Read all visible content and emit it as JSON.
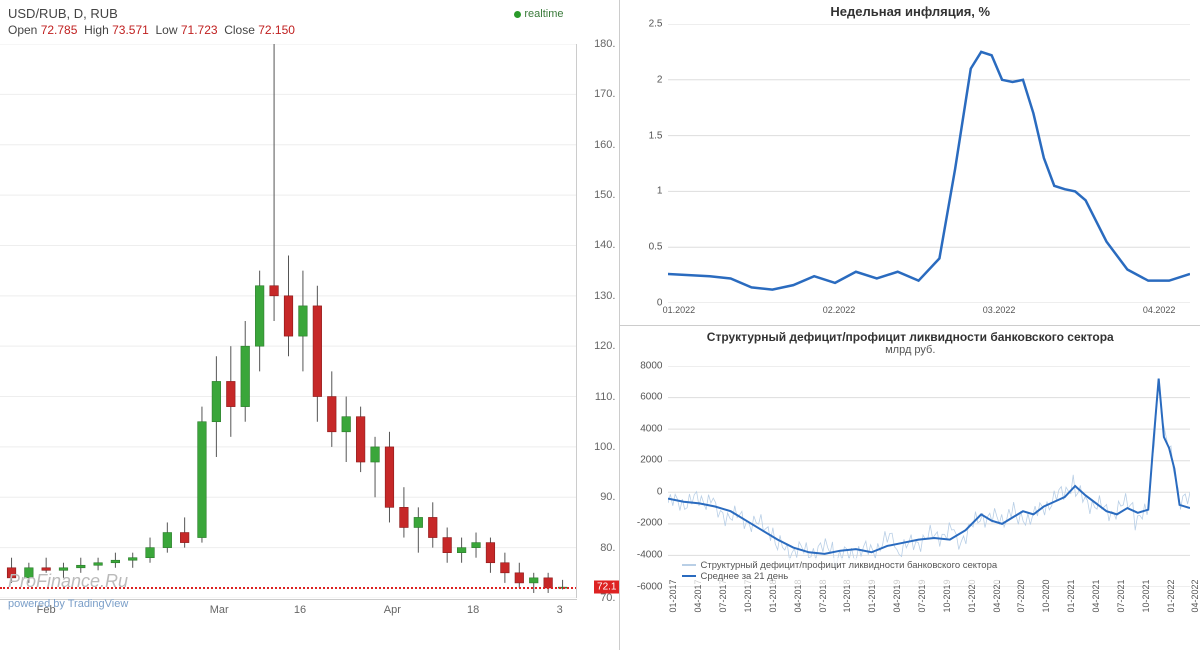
{
  "candlestick": {
    "symbol_line": "USD/RUB, D, RUB",
    "ohlc_labels": {
      "open": "Open",
      "high": "High",
      "low": "Low",
      "close": "Close"
    },
    "ohlc": {
      "open": "72.785",
      "high": "73.571",
      "low": "71.723",
      "close": "72.150"
    },
    "ohlc_value_color": "#c02020",
    "realtime_label": "realtime",
    "watermark": "ProFinance.Ru",
    "powered": "powered by TradingView",
    "price_tag": "72.1",
    "yaxis": {
      "min": 70,
      "max": 180,
      "ticks": [
        70,
        80,
        90,
        100,
        110,
        120,
        130,
        140,
        150,
        160,
        170,
        180
      ]
    },
    "xaxis": {
      "labels": [
        "Feb",
        "Mar",
        "16",
        "Apr",
        "18",
        "3"
      ],
      "positions": [
        0.08,
        0.38,
        0.52,
        0.68,
        0.82,
        0.97
      ]
    },
    "up_color": "#3aa63a",
    "up_border": "#2a7a2a",
    "down_color": "#c62828",
    "down_border": "#8a1a1a",
    "wick_color": "#555",
    "dash_color": "#d22",
    "candles": [
      {
        "x": 0.02,
        "o": 76,
        "h": 78,
        "l": 73,
        "c": 74
      },
      {
        "x": 0.05,
        "o": 74,
        "h": 77,
        "l": 73,
        "c": 76
      },
      {
        "x": 0.08,
        "o": 76,
        "h": 78,
        "l": 75,
        "c": 75.5
      },
      {
        "x": 0.11,
        "o": 75.5,
        "h": 77,
        "l": 74,
        "c": 76
      },
      {
        "x": 0.14,
        "o": 76,
        "h": 78,
        "l": 75,
        "c": 76.5
      },
      {
        "x": 0.17,
        "o": 76.5,
        "h": 78,
        "l": 75.5,
        "c": 77
      },
      {
        "x": 0.2,
        "o": 77,
        "h": 79,
        "l": 76,
        "c": 77.5
      },
      {
        "x": 0.23,
        "o": 77.5,
        "h": 79,
        "l": 76,
        "c": 78
      },
      {
        "x": 0.26,
        "o": 78,
        "h": 82,
        "l": 77,
        "c": 80
      },
      {
        "x": 0.29,
        "o": 80,
        "h": 85,
        "l": 79,
        "c": 83
      },
      {
        "x": 0.32,
        "o": 83,
        "h": 86,
        "l": 80,
        "c": 81
      },
      {
        "x": 0.35,
        "o": 82,
        "h": 108,
        "l": 81,
        "c": 105
      },
      {
        "x": 0.375,
        "o": 105,
        "h": 118,
        "l": 98,
        "c": 113
      },
      {
        "x": 0.4,
        "o": 113,
        "h": 120,
        "l": 102,
        "c": 108
      },
      {
        "x": 0.425,
        "o": 108,
        "h": 125,
        "l": 105,
        "c": 120
      },
      {
        "x": 0.45,
        "o": 120,
        "h": 135,
        "l": 115,
        "c": 132
      },
      {
        "x": 0.475,
        "o": 132,
        "h": 180,
        "l": 125,
        "c": 130
      },
      {
        "x": 0.5,
        "o": 130,
        "h": 138,
        "l": 118,
        "c": 122
      },
      {
        "x": 0.525,
        "o": 122,
        "h": 135,
        "l": 115,
        "c": 128
      },
      {
        "x": 0.55,
        "o": 128,
        "h": 132,
        "l": 105,
        "c": 110
      },
      {
        "x": 0.575,
        "o": 110,
        "h": 115,
        "l": 100,
        "c": 103
      },
      {
        "x": 0.6,
        "o": 103,
        "h": 110,
        "l": 97,
        "c": 106
      },
      {
        "x": 0.625,
        "o": 106,
        "h": 108,
        "l": 95,
        "c": 97
      },
      {
        "x": 0.65,
        "o": 97,
        "h": 102,
        "l": 90,
        "c": 100
      },
      {
        "x": 0.675,
        "o": 100,
        "h": 103,
        "l": 85,
        "c": 88
      },
      {
        "x": 0.7,
        "o": 88,
        "h": 92,
        "l": 82,
        "c": 84
      },
      {
        "x": 0.725,
        "o": 84,
        "h": 88,
        "l": 79,
        "c": 86
      },
      {
        "x": 0.75,
        "o": 86,
        "h": 89,
        "l": 80,
        "c": 82
      },
      {
        "x": 0.775,
        "o": 82,
        "h": 84,
        "l": 77,
        "c": 79
      },
      {
        "x": 0.8,
        "o": 79,
        "h": 82,
        "l": 77,
        "c": 80
      },
      {
        "x": 0.825,
        "o": 80,
        "h": 83,
        "l": 78,
        "c": 81
      },
      {
        "x": 0.85,
        "o": 81,
        "h": 82,
        "l": 75,
        "c": 77
      },
      {
        "x": 0.875,
        "o": 77,
        "h": 79,
        "l": 73,
        "c": 75
      },
      {
        "x": 0.9,
        "o": 75,
        "h": 77,
        "l": 72,
        "c": 73
      },
      {
        "x": 0.925,
        "o": 73,
        "h": 75,
        "l": 71,
        "c": 74
      },
      {
        "x": 0.95,
        "o": 74,
        "h": 75,
        "l": 71,
        "c": 72
      },
      {
        "x": 0.975,
        "o": 72,
        "h": 73.6,
        "l": 71.7,
        "c": 72.15
      }
    ]
  },
  "inflation": {
    "title": "Недельная инфляция, %",
    "line_color": "#2a6bbf",
    "line_width": 2.5,
    "ylim": [
      0,
      2.5
    ],
    "yticks": [
      0,
      0.5,
      1,
      1.5,
      2,
      2.5
    ],
    "xticks": [
      "01.2022",
      "02.2022",
      "03.2022",
      "04.2022"
    ],
    "points": [
      [
        0.0,
        0.26
      ],
      [
        0.04,
        0.25
      ],
      [
        0.08,
        0.24
      ],
      [
        0.12,
        0.22
      ],
      [
        0.16,
        0.14
      ],
      [
        0.2,
        0.12
      ],
      [
        0.24,
        0.16
      ],
      [
        0.28,
        0.24
      ],
      [
        0.32,
        0.18
      ],
      [
        0.36,
        0.28
      ],
      [
        0.4,
        0.22
      ],
      [
        0.44,
        0.28
      ],
      [
        0.48,
        0.2
      ],
      [
        0.52,
        0.4
      ],
      [
        0.55,
        1.2
      ],
      [
        0.58,
        2.1
      ],
      [
        0.6,
        2.25
      ],
      [
        0.62,
        2.22
      ],
      [
        0.64,
        2.0
      ],
      [
        0.66,
        1.98
      ],
      [
        0.68,
        2.0
      ],
      [
        0.7,
        1.7
      ],
      [
        0.72,
        1.3
      ],
      [
        0.74,
        1.05
      ],
      [
        0.76,
        1.02
      ],
      [
        0.78,
        1.0
      ],
      [
        0.8,
        0.92
      ],
      [
        0.84,
        0.55
      ],
      [
        0.88,
        0.3
      ],
      [
        0.92,
        0.2
      ],
      [
        0.96,
        0.2
      ],
      [
        1.0,
        0.26
      ]
    ]
  },
  "liquidity": {
    "title": "Структурный дефицит/профицит ликвидности банковского сектора",
    "subtitle": "млрд руб.",
    "line_color": "#2a6bbf",
    "line_width": 2,
    "raw_color": "#b9cfe6",
    "ylim": [
      -6000,
      8000
    ],
    "yticks": [
      -6000,
      -4000,
      -2000,
      0,
      2000,
      4000,
      6000,
      8000
    ],
    "xticks": [
      "01-2017",
      "04-2017",
      "07-2017",
      "10-2017",
      "01-2018",
      "04-2018",
      "07-2018",
      "10-2018",
      "01-2019",
      "04-2019",
      "07-2019",
      "10-2019",
      "01-2020",
      "04-2020",
      "07-2020",
      "10-2020",
      "01-2021",
      "04-2021",
      "07-2021",
      "10-2021",
      "01-2022",
      "04-2022"
    ],
    "legend": [
      "Структурный дефицит/профицит ликвидности банковского сектора",
      "Среднее за 21 день"
    ],
    "avg_points": [
      [
        0.0,
        -400
      ],
      [
        0.03,
        -600
      ],
      [
        0.06,
        -700
      ],
      [
        0.09,
        -900
      ],
      [
        0.12,
        -1200
      ],
      [
        0.15,
        -1800
      ],
      [
        0.18,
        -2400
      ],
      [
        0.21,
        -3000
      ],
      [
        0.24,
        -3500
      ],
      [
        0.27,
        -3800
      ],
      [
        0.3,
        -3900
      ],
      [
        0.33,
        -3700
      ],
      [
        0.36,
        -3600
      ],
      [
        0.39,
        -3800
      ],
      [
        0.42,
        -3400
      ],
      [
        0.45,
        -3200
      ],
      [
        0.48,
        -3000
      ],
      [
        0.51,
        -2900
      ],
      [
        0.54,
        -3000
      ],
      [
        0.57,
        -2400
      ],
      [
        0.6,
        -1400
      ],
      [
        0.62,
        -1800
      ],
      [
        0.64,
        -2000
      ],
      [
        0.66,
        -1600
      ],
      [
        0.68,
        -1200
      ],
      [
        0.7,
        -1400
      ],
      [
        0.72,
        -900
      ],
      [
        0.74,
        -600
      ],
      [
        0.76,
        -300
      ],
      [
        0.78,
        400
      ],
      [
        0.8,
        -200
      ],
      [
        0.82,
        -700
      ],
      [
        0.84,
        -1200
      ],
      [
        0.86,
        -1400
      ],
      [
        0.88,
        -1000
      ],
      [
        0.9,
        -1300
      ],
      [
        0.92,
        -1100
      ],
      [
        0.93,
        3200
      ],
      [
        0.94,
        7200
      ],
      [
        0.95,
        3500
      ],
      [
        0.96,
        2800
      ],
      [
        0.97,
        1500
      ],
      [
        0.98,
        -800
      ],
      [
        1.0,
        -1000
      ]
    ],
    "raw_noise_amp": 1200
  }
}
